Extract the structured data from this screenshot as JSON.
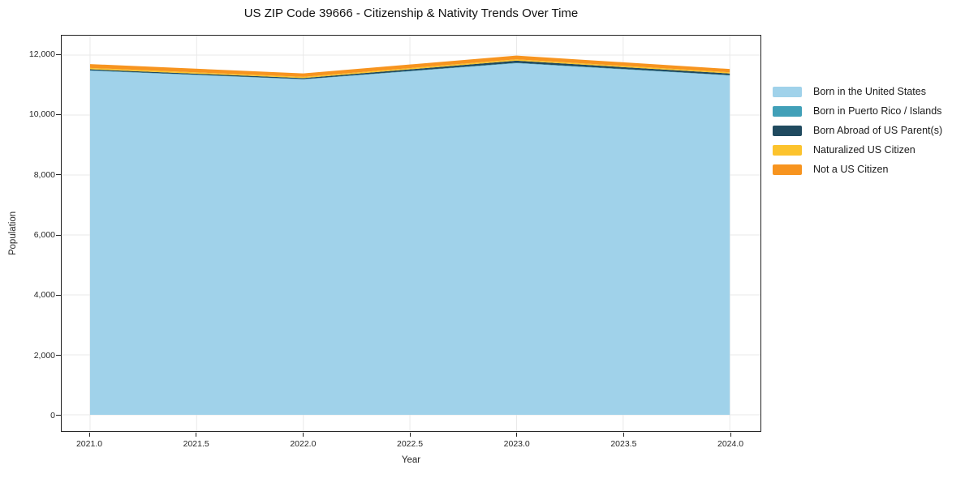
{
  "chart_data": {
    "type": "area",
    "title": "US ZIP Code 39666 - Citizenship & Nativity Trends Over Time",
    "xlabel": "Year",
    "ylabel": "Population",
    "x": [
      2021,
      2022,
      2023,
      2024
    ],
    "series": [
      {
        "name": "Born in the United States",
        "color": "#a0d2ea",
        "values": [
          11480,
          11190,
          11730,
          11320
        ]
      },
      {
        "name": "Born in Puerto Rico / Islands",
        "color": "#41a0b8",
        "values": [
          12,
          10,
          15,
          12
        ]
      },
      {
        "name": "Born Abroad of US Parent(s)",
        "color": "#204a5f",
        "values": [
          35,
          35,
          70,
          55
        ]
      },
      {
        "name": "Naturalized US Citizen",
        "color": "#fcc32d",
        "values": [
          45,
          40,
          45,
          40
        ]
      },
      {
        "name": "Not a US Citizen",
        "color": "#f7941f",
        "values": [
          130,
          115,
          125,
          110
        ]
      }
    ],
    "totals": [
      11702,
      11390,
      11985,
      11537
    ],
    "xlim": [
      2020.867,
      2024.144
    ],
    "ylim": [
      -540,
      12650
    ],
    "x_ticks": {
      "values": [
        2021.0,
        2021.5,
        2022.0,
        2022.5,
        2023.0,
        2023.5,
        2024.0
      ],
      "labels": [
        "2021.0",
        "2021.5",
        "2022.0",
        "2022.5",
        "2023.0",
        "2023.5",
        "2024.0"
      ]
    },
    "y_ticks": {
      "values": [
        0,
        2000,
        4000,
        6000,
        8000,
        10000,
        12000
      ],
      "labels": [
        "0",
        "2,000",
        "4,000",
        "6,000",
        "8,000",
        "10,000",
        "12,000"
      ]
    },
    "grid": true,
    "grid_color": "#e9e9e9",
    "legend_position": "right"
  }
}
